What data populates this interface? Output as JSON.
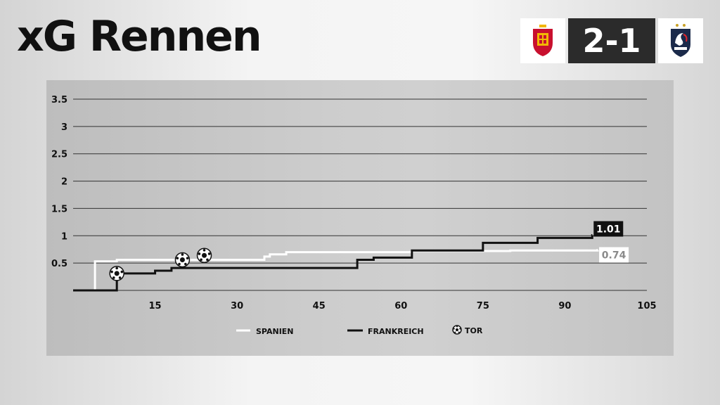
{
  "header": {
    "title": "xG Rennen"
  },
  "score": {
    "text": "2-1"
  },
  "colors": {
    "spain": "#ffffff",
    "france": "#111111",
    "grid": "#333333"
  },
  "chart_data": {
    "type": "line",
    "xlim": [
      0,
      105
    ],
    "ylim": [
      0,
      3.5
    ],
    "x_ticks": [
      15,
      30,
      45,
      60,
      75,
      90,
      105
    ],
    "y_ticks": [
      0.5,
      1,
      1.5,
      2,
      2.5,
      3,
      3.5
    ],
    "x_tick_labels": [
      "15",
      "30",
      "45",
      "60",
      "75",
      "90",
      "105"
    ],
    "y_tick_labels": [
      "0.5",
      "1",
      "1.5",
      "2",
      "2.5",
      "3",
      "3.5"
    ],
    "grid": true,
    "legend": {
      "placement": "bottom",
      "goal_label": "TOR"
    },
    "series": [
      {
        "name": "SPANIEN",
        "color": "#ffffff",
        "final_label": "0.74",
        "steps": [
          [
            0,
            0
          ],
          [
            4,
            0
          ],
          [
            4,
            0.53
          ],
          [
            8,
            0.56
          ],
          [
            35,
            0.62
          ],
          [
            36,
            0.66
          ],
          [
            39,
            0.7
          ],
          [
            62,
            0.72
          ],
          [
            80,
            0.73
          ],
          [
            96,
            0.74
          ]
        ]
      },
      {
        "name": "FRANKREICH",
        "color": "#111111",
        "final_label": "1.01",
        "steps": [
          [
            0,
            0
          ],
          [
            8,
            0
          ],
          [
            8,
            0.31
          ],
          [
            15,
            0.36
          ],
          [
            18,
            0.41
          ],
          [
            52,
            0.56
          ],
          [
            55,
            0.6
          ],
          [
            62,
            0.73
          ],
          [
            75,
            0.87
          ],
          [
            85,
            0.96
          ],
          [
            95,
            1.01
          ]
        ]
      }
    ],
    "goals": [
      {
        "x": 8,
        "y": 0.31
      },
      {
        "x": 20,
        "y": 0.56
      },
      {
        "x": 24,
        "y": 0.64
      }
    ]
  }
}
